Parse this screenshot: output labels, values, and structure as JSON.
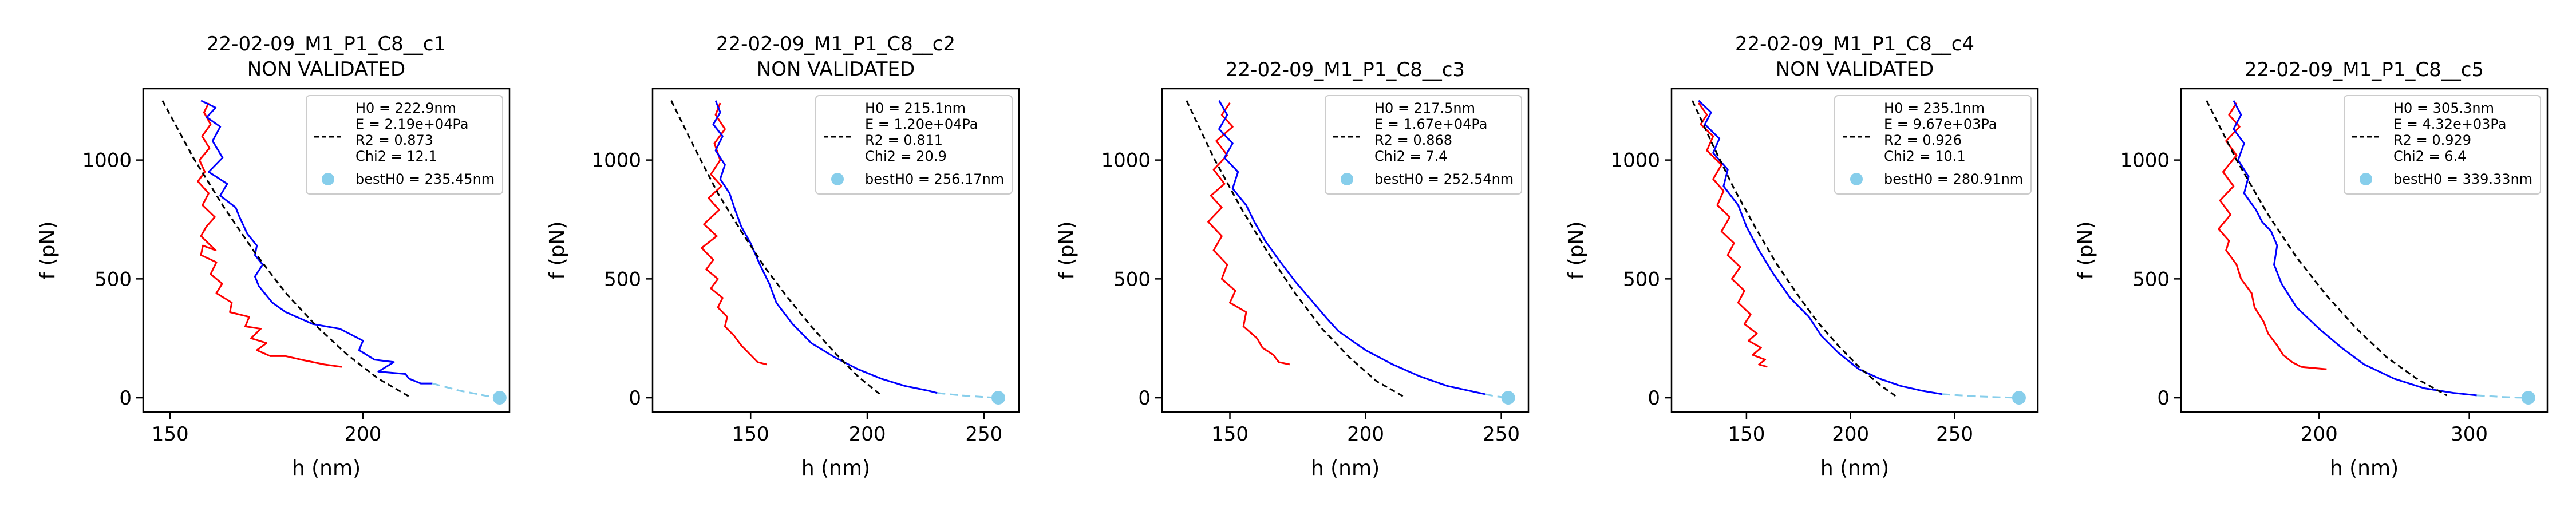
{
  "figure": {
    "common": {
      "xlabel": "h (nm)",
      "ylabel": "f (pN)",
      "legend_placement": "upper-right",
      "grid": false,
      "colors": {
        "approach": "#ff0000",
        "retract": "#0000ff",
        "fit": "#000000",
        "extrapolation": "#87ceeb",
        "bestH0_marker": "#87ceeb"
      }
    }
  },
  "chart_data": [
    {
      "type": "line",
      "title": "22-02-09_M1_P1_C8__c1",
      "subtitle": "NON VALIDATED",
      "xlabel": "h (nm)",
      "ylabel": "f (pN)",
      "xlim": [
        143,
        238
      ],
      "ylim": [
        -60,
        1300
      ],
      "xticks": [
        150,
        200
      ],
      "yticks": [
        0,
        500,
        1000
      ],
      "legend": {
        "fit_lines": [
          "H0 = 222.9nm",
          "E = 2.19e+04Pa",
          "R2 = 0.873",
          "Chi2 = 12.1"
        ],
        "marker_label": "bestH0 = 235.45nm"
      },
      "series": [
        {
          "color": "#ff0000",
          "x": [
            160,
            158.8,
            160.5,
            158.3,
            160.2,
            157.6,
            159,
            157.2,
            160,
            158.4,
            161.6,
            159.4,
            158,
            161.8,
            158.5,
            158,
            162,
            160.5,
            163.5,
            162,
            166,
            165.5,
            170.5,
            169.5,
            173.5,
            171,
            175,
            172.5,
            176,
            180,
            184,
            190,
            194.5
          ],
          "y": [
            1240,
            1200,
            1150,
            1100,
            1050,
            1000,
            950,
            910,
            860,
            810,
            760,
            720,
            680,
            620,
            640,
            600,
            570,
            520,
            480,
            440,
            400,
            360,
            340,
            300,
            290,
            250,
            230,
            200,
            175,
            175,
            160,
            140,
            130
          ]
        },
        {
          "color": "#0000ff",
          "x": [
            158,
            161.8,
            159.5,
            163,
            161,
            163.6,
            160,
            164.8,
            163,
            167,
            168,
            170,
            172.5,
            172,
            174,
            172,
            173,
            176.5,
            180,
            187,
            194,
            200,
            199,
            203,
            208,
            204,
            211,
            212,
            215,
            218
          ],
          "y": [
            1250,
            1220,
            1180,
            1140,
            1080,
            1010,
            950,
            900,
            850,
            800,
            760,
            690,
            640,
            600,
            560,
            510,
            470,
            400,
            360,
            310,
            290,
            240,
            200,
            160,
            150,
            110,
            100,
            80,
            60,
            60
          ]
        },
        {
          "color": "#000000",
          "dashed": true,
          "x": [
            148,
            156,
            164,
            172,
            180,
            188,
            196,
            204,
            212
          ],
          "y": [
            1250,
            1010,
            800,
            610,
            440,
            300,
            180,
            80,
            5
          ]
        },
        {
          "color": "#87ceeb",
          "dashed": true,
          "x": [
            218,
            225,
            232,
            235.45
          ],
          "y": [
            60,
            30,
            8,
            0
          ]
        }
      ],
      "bestH0": {
        "x": 235.45,
        "y": 0
      }
    },
    {
      "type": "line",
      "title": "22-02-09_M1_P1_C8__c2",
      "subtitle": "NON VALIDATED",
      "xlabel": "h (nm)",
      "ylabel": "f (pN)",
      "xlim": [
        108,
        265
      ],
      "ylim": [
        -60,
        1300
      ],
      "xticks": [
        150,
        200,
        250
      ],
      "yticks": [
        0,
        500,
        1000
      ],
      "legend": {
        "fit_lines": [
          "H0 = 215.1nm",
          "E = 1.20e+04Pa",
          "R2 = 0.811",
          "Chi2 = 20.9"
        ],
        "marker_label": "bestH0 = 256.17nm"
      },
      "series": [
        {
          "color": "#ff0000",
          "x": [
            137,
            135,
            139,
            134.5,
            137,
            133,
            137.5,
            132,
            136.5,
            130,
            135.5,
            129,
            134,
            131,
            136,
            133,
            138,
            136,
            140,
            139,
            143,
            146,
            150,
            153,
            157
          ],
          "y": [
            1240,
            1190,
            1130,
            1070,
            1000,
            940,
            890,
            840,
            790,
            730,
            680,
            630,
            580,
            540,
            500,
            460,
            420,
            380,
            340,
            300,
            260,
            220,
            180,
            150,
            140
          ]
        },
        {
          "color": "#0000ff",
          "x": [
            135,
            137,
            134,
            138,
            135,
            139,
            137,
            141,
            143,
            146,
            150,
            154,
            158,
            161,
            168,
            176,
            186,
            196,
            206,
            216,
            226,
            230
          ],
          "y": [
            1250,
            1200,
            1150,
            1100,
            1040,
            980,
            920,
            860,
            800,
            720,
            650,
            560,
            480,
            400,
            310,
            230,
            170,
            120,
            80,
            50,
            30,
            20
          ]
        },
        {
          "color": "#000000",
          "dashed": true,
          "x": [
            116,
            126,
            136,
            146,
            156,
            166,
            176,
            186,
            196,
            206
          ],
          "y": [
            1250,
            1050,
            860,
            700,
            550,
            420,
            300,
            190,
            90,
            10
          ]
        },
        {
          "color": "#87ceeb",
          "dashed": true,
          "x": [
            230,
            240,
            250,
            256.17
          ],
          "y": [
            20,
            10,
            3,
            0
          ]
        }
      ],
      "bestH0": {
        "x": 256.17,
        "y": 0
      }
    },
    {
      "type": "line",
      "title": "22-02-09_M1_P1_C8__c3",
      "subtitle": "",
      "xlabel": "h (nm)",
      "ylabel": "f (pN)",
      "xlim": [
        125,
        260
      ],
      "ylim": [
        -60,
        1300
      ],
      "xticks": [
        150,
        200,
        250
      ],
      "yticks": [
        0,
        500,
        1000
      ],
      "legend": {
        "fit_lines": [
          "H0 = 217.5nm",
          "E = 1.67e+04Pa",
          "R2 = 0.868",
          "Chi2 = 7.4"
        ],
        "marker_label": "bestH0 = 252.54nm"
      },
      "series": [
        {
          "color": "#ff0000",
          "x": [
            150,
            147,
            151,
            145,
            149,
            144,
            148,
            143,
            147,
            142,
            147,
            144,
            149,
            147,
            152,
            150,
            156,
            155,
            160,
            162,
            166,
            168,
            172
          ],
          "y": [
            1240,
            1190,
            1140,
            1080,
            1020,
            960,
            900,
            850,
            800,
            740,
            680,
            620,
            560,
            500,
            450,
            400,
            360,
            300,
            250,
            210,
            180,
            150,
            140
          ]
        },
        {
          "color": "#0000ff",
          "x": [
            146,
            149,
            146,
            151,
            148,
            153,
            151,
            156,
            159,
            163,
            168,
            174,
            180,
            186,
            190,
            200,
            210,
            220,
            230,
            240,
            244
          ],
          "y": [
            1250,
            1190,
            1130,
            1070,
            1010,
            950,
            880,
            810,
            740,
            660,
            580,
            490,
            410,
            330,
            280,
            200,
            140,
            90,
            50,
            25,
            15
          ]
        },
        {
          "color": "#000000",
          "dashed": true,
          "x": [
            134,
            144,
            154,
            164,
            174,
            184,
            194,
            204,
            214
          ],
          "y": [
            1250,
            1010,
            800,
            610,
            440,
            290,
            170,
            70,
            5
          ]
        },
        {
          "color": "#87ceeb",
          "dashed": true,
          "x": [
            244,
            248,
            252.54
          ],
          "y": [
            15,
            6,
            0
          ]
        }
      ],
      "bestH0": {
        "x": 252.54,
        "y": 0
      }
    },
    {
      "type": "line",
      "title": "22-02-09_M1_P1_C8__c4",
      "subtitle": "NON VALIDATED",
      "xlabel": "h (nm)",
      "ylabel": "f (pN)",
      "xlim": [
        114,
        290
      ],
      "ylim": [
        -60,
        1300
      ],
      "xticks": [
        150,
        200,
        250
      ],
      "yticks": [
        0,
        500,
        1000
      ],
      "legend": {
        "fit_lines": [
          "H0 = 235.1nm",
          "E = 9.67e+03Pa",
          "R2 = 0.926",
          "Chi2 = 10.1"
        ],
        "marker_label": "bestH0 = 280.91nm"
      },
      "series": [
        {
          "color": "#ff0000",
          "x": [
            127,
            131,
            128,
            134,
            131,
            138,
            134,
            139,
            136,
            142,
            138,
            144,
            141,
            147,
            143,
            149,
            146,
            152,
            149,
            155,
            151,
            157,
            153,
            159,
            156,
            160
          ],
          "y": [
            1240,
            1190,
            1150,
            1100,
            1040,
            980,
            920,
            870,
            810,
            760,
            700,
            650,
            600,
            550,
            500,
            450,
            400,
            350,
            310,
            270,
            240,
            210,
            180,
            160,
            140,
            130
          ]
        },
        {
          "color": "#0000ff",
          "x": [
            127,
            133,
            130,
            137,
            134,
            141,
            139,
            146,
            150,
            156,
            163,
            171,
            180,
            186,
            194,
            204,
            214,
            224,
            234,
            244
          ],
          "y": [
            1250,
            1200,
            1150,
            1090,
            1030,
            960,
            890,
            810,
            720,
            620,
            520,
            420,
            340,
            260,
            190,
            120,
            80,
            50,
            30,
            15
          ]
        },
        {
          "color": "#000000",
          "dashed": true,
          "x": [
            124,
            134,
            144,
            154,
            164,
            174,
            184,
            194,
            204,
            214,
            222
          ],
          "y": [
            1250,
            1060,
            880,
            720,
            570,
            440,
            320,
            220,
            130,
            55,
            5
          ]
        },
        {
          "color": "#87ceeb",
          "dashed": true,
          "x": [
            244,
            260,
            272,
            280.91
          ],
          "y": [
            15,
            6,
            2,
            0
          ]
        }
      ],
      "bestH0": {
        "x": 280.91,
        "y": 0
      }
    },
    {
      "type": "line",
      "title": "22-02-09_M1_P1_C8__c5",
      "subtitle": "",
      "xlabel": "h (nm)",
      "ylabel": "f (pN)",
      "xlim": [
        108,
        352
      ],
      "ylim": [
        -60,
        1300
      ],
      "xticks": [
        200,
        300
      ],
      "yticks": [
        0,
        500,
        1000
      ],
      "legend": {
        "fit_lines": [
          "H0 = 305.3nm",
          "E = 4.32e+03Pa",
          "R2 = 0.929",
          "Chi2 = 6.4"
        ],
        "marker_label": "bestH0 = 339.33nm"
      },
      "series": [
        {
          "color": "#ff0000",
          "x": [
            145,
            140,
            147,
            138,
            145,
            136,
            143,
            134,
            141,
            133,
            140,
            138,
            145,
            148,
            155,
            157,
            163,
            166,
            172,
            176,
            182,
            188,
            196,
            205
          ],
          "y": [
            1240,
            1190,
            1140,
            1080,
            1020,
            950,
            890,
            830,
            770,
            710,
            660,
            620,
            560,
            500,
            440,
            380,
            320,
            270,
            220,
            180,
            150,
            130,
            125,
            120
          ]
        },
        {
          "color": "#0000ff",
          "x": [
            143,
            148,
            143,
            150,
            146,
            153,
            150,
            158,
            162,
            168,
            172,
            170,
            175,
            185,
            200,
            215,
            230,
            250,
            270,
            290,
            305
          ],
          "y": [
            1250,
            1190,
            1130,
            1070,
            1000,
            930,
            860,
            790,
            740,
            700,
            640,
            560,
            480,
            380,
            290,
            210,
            140,
            80,
            40,
            20,
            10
          ]
        },
        {
          "color": "#000000",
          "dashed": true,
          "x": [
            125,
            145,
            165,
            185,
            205,
            225,
            245,
            265,
            285
          ],
          "y": [
            1250,
            1000,
            780,
            590,
            430,
            290,
            170,
            80,
            10
          ]
        },
        {
          "color": "#87ceeb",
          "dashed": true,
          "x": [
            305,
            320,
            332,
            339.33
          ],
          "y": [
            10,
            4,
            1,
            0
          ]
        }
      ],
      "bestH0": {
        "x": 339.33,
        "y": 0
      }
    }
  ]
}
